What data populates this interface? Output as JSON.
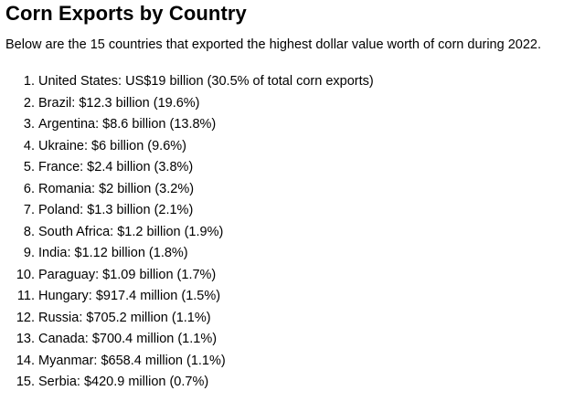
{
  "title": "Corn Exports by Country",
  "intro": "Below are the 15 countries that exported the highest dollar value worth of corn during 2022.",
  "items": [
    {
      "num": "1.",
      "text": "United States: US$19 billion (30.5% of total corn exports)"
    },
    {
      "num": "2.",
      "text": "Brazil: $12.3 billion (19.6%)"
    },
    {
      "num": "3.",
      "text": "Argentina: $8.6 billion (13.8%)"
    },
    {
      "num": "4.",
      "text": "Ukraine: $6 billion (9.6%)"
    },
    {
      "num": "5.",
      "text": "France: $2.4 billion (3.8%)"
    },
    {
      "num": "6.",
      "text": "Romania: $2 billion (3.2%)"
    },
    {
      "num": "7.",
      "text": "Poland: $1.3 billion (2.1%)"
    },
    {
      "num": "8.",
      "text": "South Africa: $1.2 billion (1.9%)"
    },
    {
      "num": "9.",
      "text": "India: $1.12 billion (1.8%)"
    },
    {
      "num": "10.",
      "text": "Paraguay: $1.09 billion (1.7%)"
    },
    {
      "num": "11.",
      "text": "Hungary: $917.4 million (1.5%)"
    },
    {
      "num": "12.",
      "text": "Russia: $705.2 million (1.1%)"
    },
    {
      "num": "13.",
      "text": "Canada: $700.4 million (1.1%)"
    },
    {
      "num": "14.",
      "text": "Myanmar: $658.4 million (1.1%)"
    },
    {
      "num": "15.",
      "text": "Serbia: $420.9 million (0.7%)"
    }
  ]
}
